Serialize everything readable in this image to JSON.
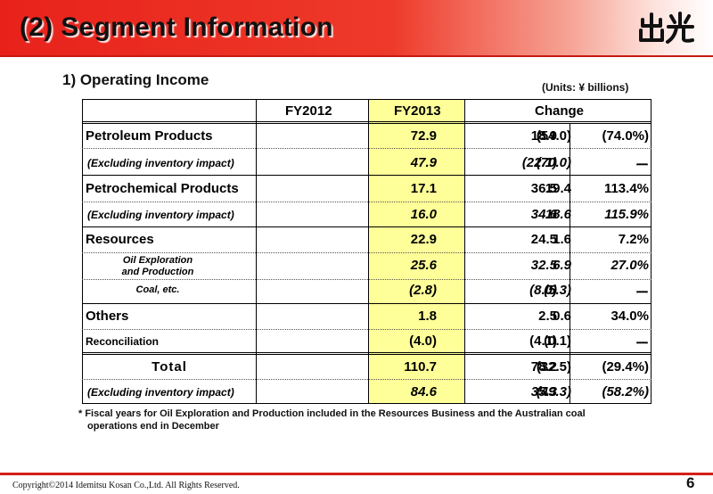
{
  "header": {
    "title": "(2) Segment Information",
    "logo_text": "出光"
  },
  "section": {
    "title": "1) Operating Income",
    "units": "(Units: ¥ billions)"
  },
  "table": {
    "columns": [
      "FY2012",
      "FY2013",
      "Change"
    ],
    "rows": [
      {
        "label": "Petroleum Products",
        "fy2012": "72.9",
        "fy2013": "18.9",
        "change": "(54.0)",
        "pct": "(74.0%)"
      },
      {
        "label": "(Excluding inventory impact)",
        "fy2012": "47.9",
        "fy2013": "(22.1)",
        "change": "(70.0)",
        "pct": "ー"
      },
      {
        "label": "Petrochemical Products",
        "fy2012": "17.1",
        "fy2013": "36.5",
        "change": "19.4",
        "pct": "113.4%"
      },
      {
        "label": "(Excluding inventory impact)",
        "fy2012": "16.0",
        "fy2013": "34.6",
        "change": "18.6",
        "pct": "115.9%"
      },
      {
        "label": "Resources",
        "fy2012": "22.9",
        "fy2013": "24.5",
        "change": "1.6",
        "pct": "7.2%"
      },
      {
        "label_line1": "Oil Exploration",
        "label_line2": "and Production",
        "fy2012": "25.6",
        "fy2013": "32.5",
        "change": "6.9",
        "pct": "27.0%"
      },
      {
        "label": "Coal, etc.",
        "fy2012": "(2.8)",
        "fy2013": "(8.0)",
        "change": "(5.3)",
        "pct": "ー"
      },
      {
        "label": "Others",
        "fy2012": "1.8",
        "fy2013": "2.5",
        "change": "0.6",
        "pct": "34.0%"
      },
      {
        "label": "Reconciliation",
        "fy2012": "(4.0)",
        "fy2013": "(4.1)",
        "change": "(0.1)",
        "pct": "ー"
      },
      {
        "label": "Total",
        "fy2012": "110.7",
        "fy2013": "78.2",
        "change": "(32.5)",
        "pct": "(29.4%)"
      },
      {
        "label": "(Excluding inventory impact)",
        "fy2012": "84.6",
        "fy2013": "35.3",
        "change": "(49.3)",
        "pct": "(58.2%)"
      }
    ]
  },
  "footnote": {
    "line1": "* Fiscal years for Oil Exploration and Production included in the Resources Business and the Australian coal",
    "line2": "operations end in December"
  },
  "footer": {
    "copyright": "Copyright©2014 Idemitsu Kosan Co.,Ltd. All Rights Reserved.",
    "page": "6"
  },
  "colors": {
    "banner_red": "#e8221b",
    "highlight_yellow": "#ffff99"
  }
}
